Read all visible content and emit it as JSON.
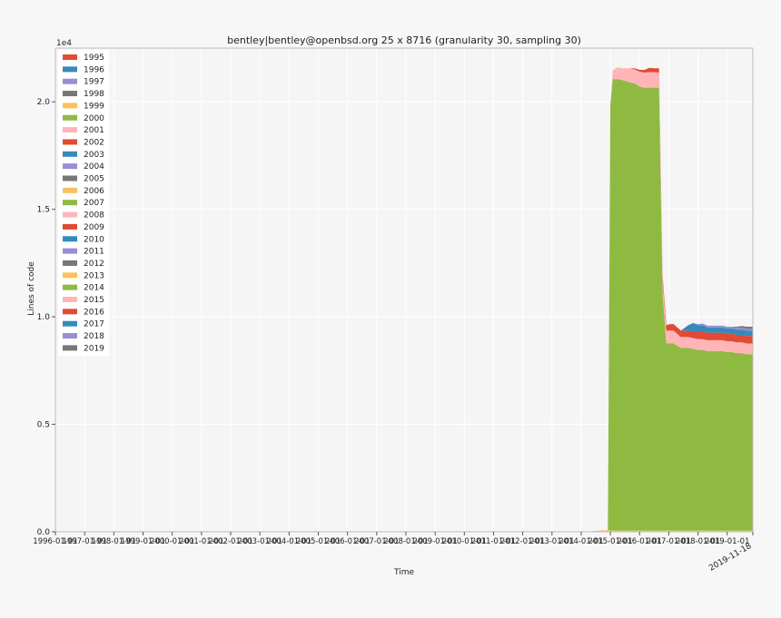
{
  "chart_data": {
    "type": "area",
    "title": "bentley|bentley@openbsd.org 25 x 8716 (granularity 30, sampling 30)",
    "xlabel": "Time",
    "ylabel": "Lines of code",
    "y_multiplier_label": "1e4",
    "ylim": [
      0,
      22500
    ],
    "xlim": [
      "1996-01-01",
      "2019-11-18"
    ],
    "y_ticks": [
      {
        "value": 0,
        "label": "0.0"
      },
      {
        "value": 5000,
        "label": "0.5"
      },
      {
        "value": 10000,
        "label": "1.0"
      },
      {
        "value": 15000,
        "label": "1.5"
      },
      {
        "value": 20000,
        "label": "2.0"
      }
    ],
    "x_ticks": [
      {
        "value": "1996-01-01",
        "label": "1996-01-01"
      },
      {
        "value": "1997-01-01",
        "label": "1997-01-01"
      },
      {
        "value": "1998-01-01",
        "label": "1998-01-01"
      },
      {
        "value": "1999-01-01",
        "label": "1999-01-01"
      },
      {
        "value": "2000-01-01",
        "label": "2000-01-01"
      },
      {
        "value": "2001-01-01",
        "label": "2001-01-01"
      },
      {
        "value": "2002-01-01",
        "label": "2002-01-01"
      },
      {
        "value": "2003-01-01",
        "label": "2003-01-01"
      },
      {
        "value": "2004-01-01",
        "label": "2004-01-01"
      },
      {
        "value": "2005-01-01",
        "label": "2005-01-01"
      },
      {
        "value": "2006-01-01",
        "label": "2006-01-01"
      },
      {
        "value": "2007-01-01",
        "label": "2007-01-01"
      },
      {
        "value": "2008-01-01",
        "label": "2008-01-01"
      },
      {
        "value": "2009-01-01",
        "label": "2009-01-01"
      },
      {
        "value": "2010-01-01",
        "label": "2010-01-01"
      },
      {
        "value": "2011-01-01",
        "label": "2011-01-01"
      },
      {
        "value": "2012-01-01",
        "label": "2012-01-01"
      },
      {
        "value": "2013-01-01",
        "label": "2013-01-01"
      },
      {
        "value": "2014-01-01",
        "label": "2014-01-01"
      },
      {
        "value": "2015-01-01",
        "label": "2015-01-01"
      },
      {
        "value": "2016-01-01",
        "label": "2016-01-01"
      },
      {
        "value": "2017-01-01",
        "label": "2017-01-01"
      },
      {
        "value": "2018-01-01",
        "label": "2018-01-01"
      },
      {
        "value": "2019-01-01",
        "label": "2019-01-01"
      }
    ],
    "end_label": "2019-11-18",
    "legend_position": "top-left",
    "grid": true,
    "dates": [
      "2014-01-01",
      "2014-12-01",
      "2015-01-01",
      "2015-02-01",
      "2015-04-01",
      "2015-06-01",
      "2015-09-01",
      "2015-11-01",
      "2016-01-01",
      "2016-03-01",
      "2016-05-01",
      "2016-07-01",
      "2016-09-01",
      "2016-10-15",
      "2016-12-01",
      "2017-01-15",
      "2017-03-01",
      "2017-06-01",
      "2017-09-01",
      "2017-11-01",
      "2018-01-01",
      "2018-03-01",
      "2018-05-01",
      "2018-07-01",
      "2018-09-01",
      "2018-11-01",
      "2019-01-01",
      "2019-03-01",
      "2019-05-01",
      "2019-07-01",
      "2019-09-01",
      "2019-11-18"
    ],
    "series": [
      {
        "name": "1995",
        "color": "#e24a33",
        "values": [
          0,
          0,
          0,
          0,
          0,
          0,
          0,
          0,
          0,
          0,
          0,
          0,
          0,
          0,
          0,
          0,
          0,
          0,
          0,
          0,
          0,
          0,
          0,
          0,
          0,
          0,
          0,
          0,
          0,
          0,
          0,
          0
        ]
      },
      {
        "name": "1996",
        "color": "#348abd",
        "values": [
          0,
          0,
          0,
          0,
          0,
          0,
          0,
          0,
          0,
          0,
          0,
          0,
          0,
          0,
          0,
          0,
          0,
          0,
          0,
          0,
          0,
          0,
          0,
          0,
          0,
          0,
          0,
          0,
          0,
          0,
          0,
          0
        ]
      },
      {
        "name": "1997",
        "color": "#988ed5",
        "values": [
          0,
          0,
          0,
          0,
          0,
          0,
          0,
          0,
          0,
          0,
          0,
          0,
          0,
          0,
          0,
          0,
          0,
          0,
          0,
          0,
          0,
          0,
          0,
          0,
          0,
          0,
          0,
          0,
          0,
          0,
          0,
          0
        ]
      },
      {
        "name": "1998",
        "color": "#777777",
        "values": [
          0,
          0,
          0,
          0,
          0,
          0,
          0,
          0,
          0,
          0,
          0,
          0,
          0,
          0,
          0,
          0,
          0,
          0,
          0,
          0,
          0,
          0,
          0,
          0,
          0,
          0,
          0,
          0,
          0,
          0,
          0,
          0
        ]
      },
      {
        "name": "1999",
        "color": "#fbc15e",
        "values": [
          0,
          0,
          0,
          0,
          0,
          0,
          0,
          0,
          0,
          0,
          0,
          0,
          0,
          0,
          0,
          0,
          0,
          0,
          0,
          0,
          0,
          0,
          0,
          0,
          0,
          0,
          0,
          0,
          0,
          0,
          0,
          0
        ]
      },
      {
        "name": "2000",
        "color": "#8eba42",
        "values": [
          0,
          0,
          0,
          0,
          0,
          0,
          0,
          0,
          0,
          0,
          0,
          0,
          0,
          0,
          0,
          0,
          0,
          0,
          0,
          0,
          0,
          0,
          0,
          0,
          0,
          0,
          0,
          0,
          0,
          0,
          0,
          0
        ]
      },
      {
        "name": "2001",
        "color": "#ffb5b8",
        "values": [
          0,
          0,
          0,
          0,
          0,
          0,
          0,
          0,
          0,
          0,
          0,
          0,
          0,
          0,
          0,
          0,
          0,
          0,
          0,
          0,
          0,
          0,
          0,
          0,
          0,
          0,
          0,
          0,
          0,
          0,
          0,
          0
        ]
      },
      {
        "name": "2002",
        "color": "#e24a33",
        "values": [
          0,
          0,
          0,
          0,
          0,
          0,
          0,
          0,
          0,
          0,
          0,
          0,
          0,
          0,
          0,
          0,
          0,
          0,
          0,
          0,
          0,
          0,
          0,
          0,
          0,
          0,
          0,
          0,
          0,
          0,
          0,
          0
        ]
      },
      {
        "name": "2003",
        "color": "#348abd",
        "values": [
          0,
          0,
          0,
          0,
          0,
          0,
          0,
          0,
          0,
          0,
          0,
          0,
          0,
          0,
          0,
          0,
          0,
          0,
          0,
          0,
          0,
          0,
          0,
          0,
          0,
          0,
          0,
          0,
          0,
          0,
          0,
          0
        ]
      },
      {
        "name": "2004",
        "color": "#988ed5",
        "values": [
          0,
          0,
          0,
          0,
          0,
          0,
          0,
          0,
          0,
          0,
          0,
          0,
          0,
          0,
          0,
          0,
          0,
          0,
          0,
          0,
          0,
          0,
          0,
          0,
          0,
          0,
          0,
          0,
          0,
          0,
          0,
          0
        ]
      },
      {
        "name": "2005",
        "color": "#777777",
        "values": [
          0,
          0,
          0,
          0,
          0,
          0,
          0,
          0,
          0,
          0,
          0,
          0,
          0,
          0,
          0,
          0,
          0,
          0,
          0,
          0,
          0,
          0,
          0,
          0,
          0,
          0,
          0,
          0,
          0,
          0,
          0,
          0
        ]
      },
      {
        "name": "2006",
        "color": "#fbc15e",
        "values": [
          0,
          0,
          0,
          0,
          0,
          0,
          0,
          0,
          0,
          0,
          0,
          0,
          0,
          0,
          0,
          0,
          0,
          0,
          0,
          0,
          0,
          0,
          0,
          0,
          0,
          0,
          0,
          0,
          0,
          0,
          0,
          0
        ]
      },
      {
        "name": "2007",
        "color": "#8eba42",
        "values": [
          0,
          0,
          0,
          0,
          0,
          0,
          0,
          0,
          0,
          0,
          0,
          0,
          0,
          0,
          0,
          0,
          0,
          0,
          0,
          0,
          0,
          0,
          0,
          0,
          0,
          0,
          0,
          0,
          0,
          0,
          0,
          0
        ]
      },
      {
        "name": "2008",
        "color": "#ffb5b8",
        "values": [
          0,
          0,
          0,
          0,
          0,
          0,
          0,
          0,
          0,
          0,
          0,
          0,
          0,
          0,
          0,
          0,
          0,
          0,
          0,
          0,
          0,
          0,
          0,
          0,
          0,
          0,
          0,
          0,
          0,
          0,
          0,
          0
        ]
      },
      {
        "name": "2009",
        "color": "#e24a33",
        "values": [
          0,
          0,
          0,
          0,
          0,
          0,
          0,
          0,
          0,
          0,
          0,
          0,
          0,
          0,
          0,
          0,
          0,
          0,
          0,
          0,
          0,
          0,
          0,
          0,
          0,
          0,
          0,
          0,
          0,
          0,
          0,
          0
        ]
      },
      {
        "name": "2010",
        "color": "#348abd",
        "values": [
          0,
          0,
          0,
          0,
          0,
          0,
          0,
          0,
          0,
          0,
          0,
          0,
          0,
          0,
          0,
          0,
          0,
          0,
          0,
          0,
          0,
          0,
          0,
          0,
          0,
          0,
          0,
          0,
          0,
          0,
          0,
          0
        ]
      },
      {
        "name": "2011",
        "color": "#988ed5",
        "values": [
          0,
          0,
          0,
          0,
          0,
          0,
          0,
          0,
          0,
          0,
          0,
          0,
          0,
          0,
          0,
          0,
          0,
          0,
          0,
          0,
          0,
          0,
          0,
          0,
          0,
          0,
          0,
          0,
          0,
          0,
          0,
          0
        ]
      },
      {
        "name": "2012",
        "color": "#777777",
        "values": [
          0,
          0,
          0,
          0,
          0,
          0,
          0,
          0,
          0,
          0,
          0,
          0,
          0,
          0,
          0,
          0,
          0,
          0,
          0,
          0,
          0,
          0,
          0,
          0,
          0,
          0,
          0,
          0,
          0,
          0,
          0,
          0
        ]
      },
      {
        "name": "2013",
        "color": "#fbc15e",
        "values": [
          0,
          80,
          60,
          60,
          60,
          60,
          60,
          60,
          60,
          60,
          60,
          60,
          60,
          60,
          60,
          60,
          60,
          60,
          60,
          60,
          60,
          60,
          60,
          60,
          60,
          60,
          60,
          60,
          60,
          60,
          60,
          60
        ]
      },
      {
        "name": "2014",
        "color": "#8eba42",
        "values": [
          0,
          0,
          19800,
          21000,
          21000,
          20950,
          20850,
          20800,
          20650,
          20600,
          20600,
          20600,
          20600,
          11000,
          8700,
          8700,
          8700,
          8500,
          8500,
          8450,
          8400,
          8400,
          8350,
          8350,
          8350,
          8350,
          8300,
          8300,
          8250,
          8250,
          8200,
          8200
        ]
      },
      {
        "name": "2015",
        "color": "#ffb5b8",
        "values": [
          0,
          0,
          0,
          400,
          550,
          550,
          650,
          650,
          700,
          700,
          720,
          720,
          700,
          600,
          600,
          600,
          600,
          500,
          500,
          500,
          500,
          500,
          500,
          500,
          500,
          500,
          500,
          500,
          500,
          500,
          500,
          500
        ]
      },
      {
        "name": "2016",
        "color": "#e24a33",
        "values": [
          0,
          0,
          0,
          0,
          0,
          0,
          0,
          50,
          80,
          120,
          200,
          180,
          200,
          250,
          250,
          300,
          300,
          300,
          300,
          300,
          350,
          350,
          350,
          350,
          350,
          350,
          350,
          350,
          350,
          350,
          350,
          350
        ]
      },
      {
        "name": "2017",
        "color": "#348abd",
        "values": [
          0,
          0,
          0,
          0,
          0,
          0,
          0,
          0,
          0,
          0,
          0,
          0,
          0,
          0,
          0,
          0,
          0,
          0,
          250,
          400,
          300,
          300,
          250,
          250,
          250,
          250,
          250,
          250,
          250,
          250,
          250,
          250
        ]
      },
      {
        "name": "2018",
        "color": "#988ed5",
        "values": [
          0,
          0,
          0,
          0,
          0,
          0,
          0,
          0,
          0,
          0,
          0,
          0,
          0,
          0,
          0,
          0,
          0,
          0,
          0,
          0,
          50,
          80,
          80,
          80,
          80,
          80,
          80,
          80,
          80,
          80,
          80,
          80
        ]
      },
      {
        "name": "2019",
        "color": "#777777",
        "values": [
          0,
          0,
          0,
          0,
          0,
          0,
          0,
          0,
          0,
          0,
          0,
          0,
          0,
          0,
          0,
          0,
          0,
          0,
          0,
          0,
          0,
          0,
          0,
          0,
          0,
          0,
          0,
          0,
          50,
          80,
          100,
          100
        ]
      }
    ]
  }
}
